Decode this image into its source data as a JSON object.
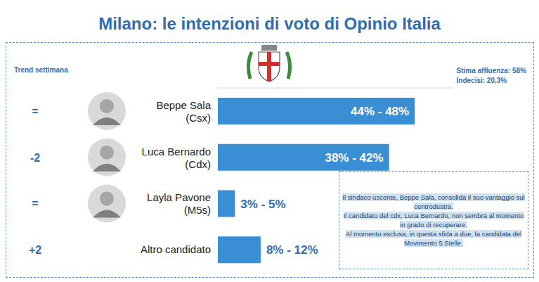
{
  "chart_data": {
    "type": "bar",
    "orientation": "horizontal",
    "title": "Milano: le intenzioni di voto di Opinio Italia",
    "categories": [
      "Beppe Sala (Csx)",
      "Luca Bernardo (Cdx)",
      "Layla Pavone (M5s)",
      "Altro candidato"
    ],
    "values": [
      46,
      40,
      4,
      10
    ],
    "value_labels": [
      "44% - 48%",
      "38% - 42%",
      "3% - 5%",
      "8% - 12%"
    ],
    "data_labels": true,
    "color": "#3a8ed3",
    "xlim": [
      0,
      55
    ],
    "tick_labels": false,
    "grid": false,
    "trend_title": "Trend settimana",
    "trend": [
      "=",
      "-2",
      "=",
      "+2"
    ],
    "annotations": [
      "Stima affluenza: 58%",
      "Indecisi: 20,3%"
    ],
    "note": [
      "Il sindaco uscente, Beppe Sala, consolida il suo vantaggio sul centrodestra.",
      "Il candidato del cdx, Luca Bernardo, non sembra al momento in grado di recuperare.",
      "Al momento esclusa, in questa sfida a due, la candidata del Movimento 5 Stelle."
    ]
  }
}
